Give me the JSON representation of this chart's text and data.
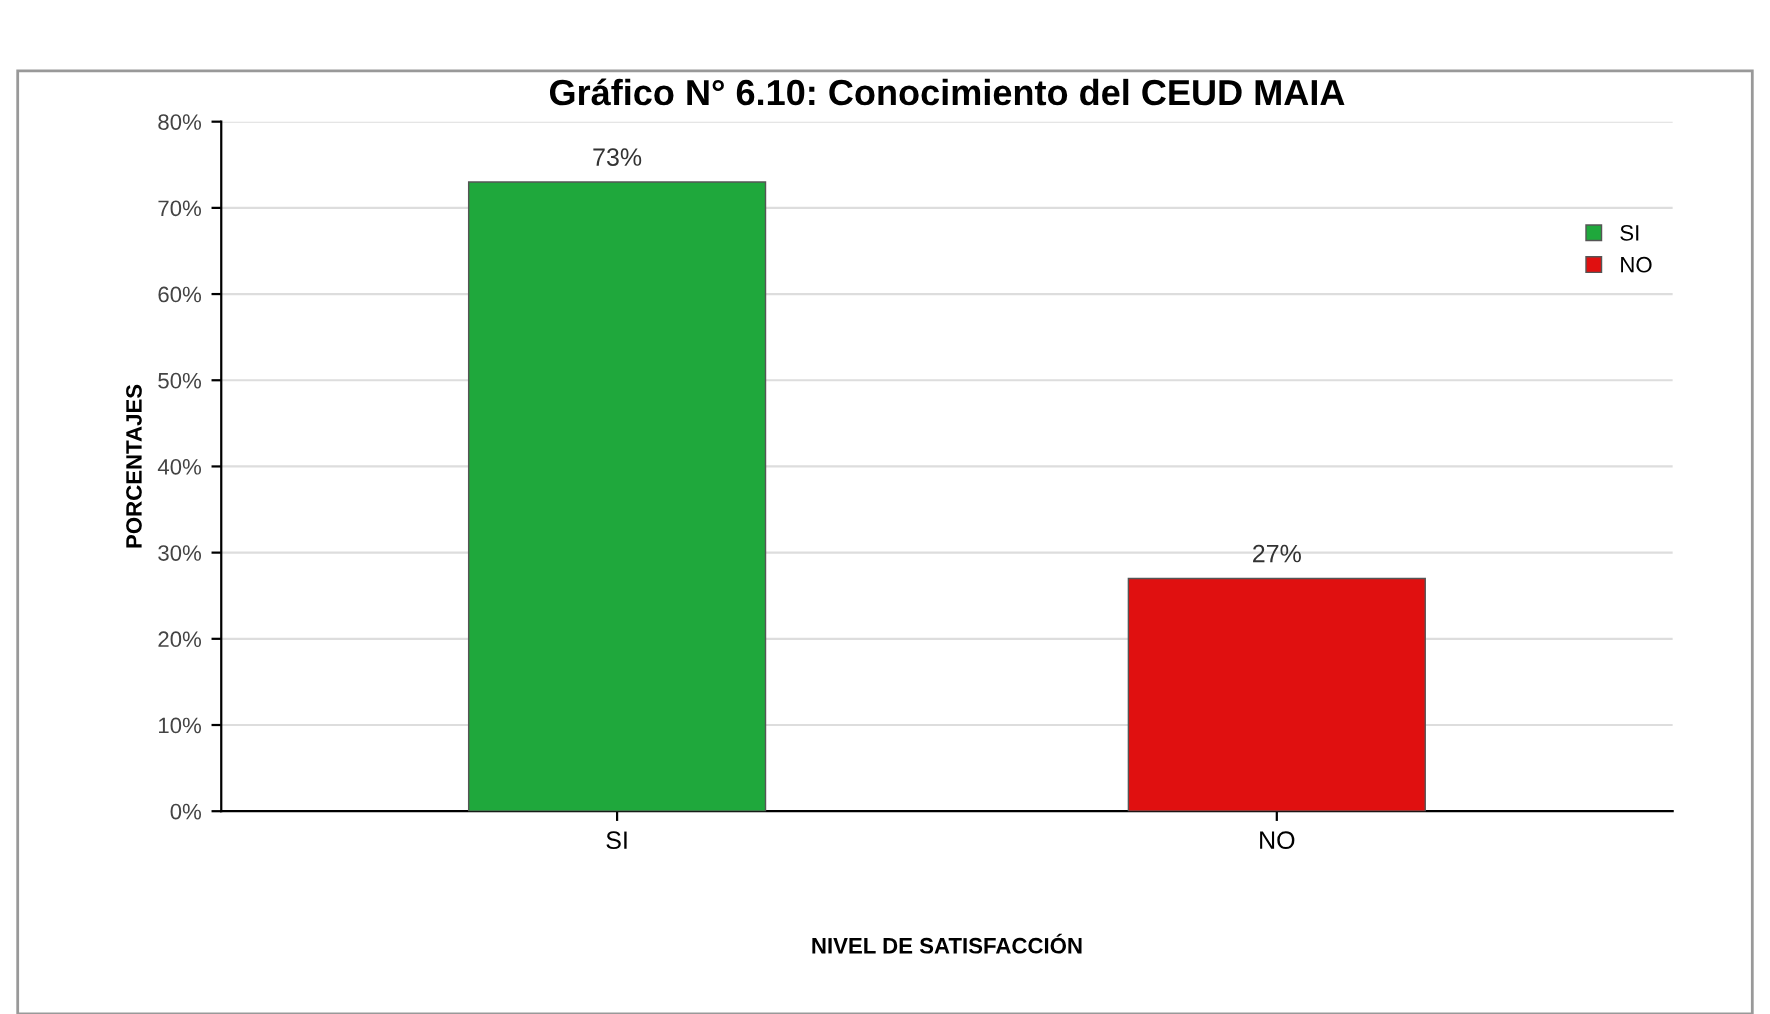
{
  "chart_data": {
    "type": "bar",
    "title": "Gráfico N° 6.10: Conocimiento del CEUD MAIA",
    "xlabel": "NIVEL DE SATISFACCIÓN",
    "ylabel": "PORCENTAJES",
    "categories": [
      "SI",
      "NO"
    ],
    "series": [
      {
        "name": "SI",
        "color": "#1fa83c",
        "values": [
          73,
          null
        ],
        "value_labels": [
          "73%",
          null
        ]
      },
      {
        "name": "NO",
        "color": "#e01010",
        "values": [
          null,
          27
        ],
        "value_labels": [
          null,
          "27%"
        ]
      }
    ],
    "ylim": [
      0,
      80
    ],
    "yticks": [
      {
        "value": 0,
        "label": "0%"
      },
      {
        "value": 10,
        "label": "10%"
      },
      {
        "value": 20,
        "label": "20%"
      },
      {
        "value": 30,
        "label": "30%"
      },
      {
        "value": 40,
        "label": "40%"
      },
      {
        "value": 50,
        "label": "50%"
      },
      {
        "value": 60,
        "label": "60%"
      },
      {
        "value": 70,
        "label": "70%"
      },
      {
        "value": 80,
        "label": "80%"
      }
    ],
    "grid": "y",
    "legend": "top right"
  }
}
